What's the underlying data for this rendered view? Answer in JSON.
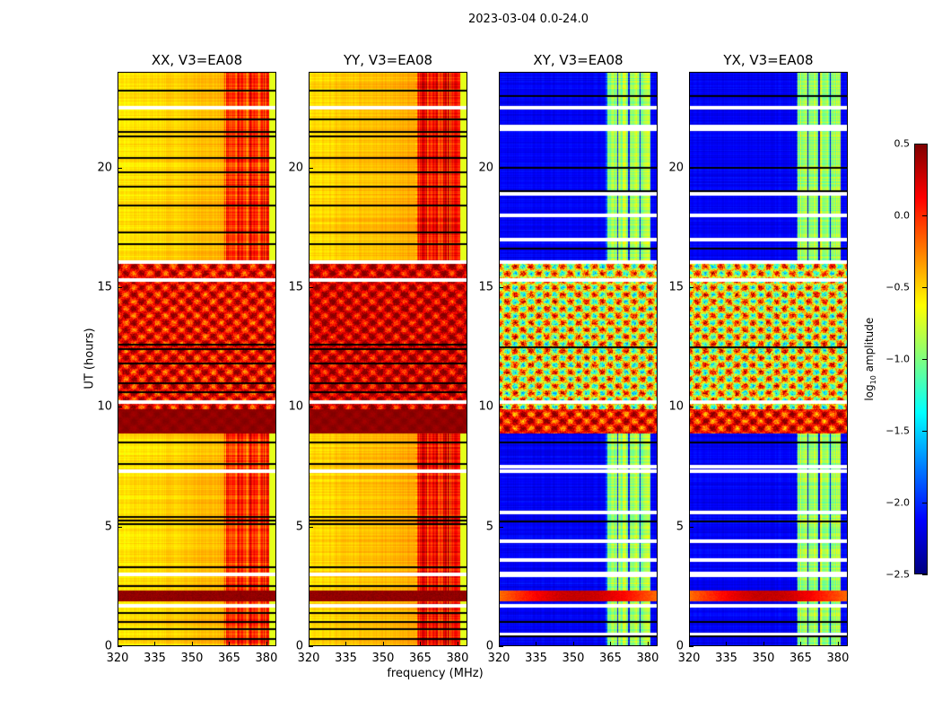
{
  "figure": {
    "suptitle": "2023-03-04 0.0-24.0",
    "ylabel": "UT (hours)",
    "xlabel": "frequency (MHz)"
  },
  "chart_data": {
    "type": "heatmap",
    "xlim": [
      320,
      384
    ],
    "ylim": [
      0,
      24
    ],
    "xticks": [
      "320",
      "335",
      "350",
      "365",
      "380"
    ],
    "xtick_values": [
      320,
      335,
      350,
      365,
      380
    ],
    "yticks": [
      "0",
      "5",
      "10",
      "15",
      "20"
    ],
    "ytick_values": [
      0,
      5,
      10,
      15,
      20
    ],
    "colorbar": {
      "label_prefix": "log",
      "label_sub": "10",
      "label_suffix": " amplitude",
      "range": [
        -2.5,
        0.5
      ],
      "ticks": [
        "0.5",
        "0.0",
        "−0.5",
        "−1.0",
        "−1.5",
        "−2.0",
        "−2.5"
      ],
      "tick_values": [
        0.5,
        0,
        -0.5,
        -1,
        -1.5,
        -2,
        -2.5
      ],
      "colormap": "jet"
    },
    "panels": [
      {
        "title": "XX, V3=EA08",
        "kind": "parallel",
        "base": -0.42,
        "rfi_band": [
          363,
          381
        ],
        "rfi_level": 0.05,
        "active": [
          {
            "t": [
              9.9,
              16
            ],
            "level": 0.15,
            "amp": 0.45
          },
          {
            "t": [
              8.9,
              9.9
            ],
            "level": 0.45,
            "amp": 0.05
          }
        ],
        "strong": [
          {
            "t": [
              1.9,
              2.35
            ],
            "level": 0.45
          }
        ],
        "black_rows": [
          0.3,
          0.7,
          1.0,
          1.4,
          2.5,
          3.3,
          5.1,
          5.25,
          5.4,
          7.6,
          8.5,
          10.6,
          11.0,
          11.8,
          12.4,
          12.6,
          16.8,
          17.3,
          18.4,
          19.2,
          19.8,
          20.4,
          21.3,
          21.5,
          22.0,
          23.2
        ],
        "white_rows": [
          1.7,
          3.0,
          7.3,
          10.2,
          15.3,
          16.05,
          22.5
        ]
      },
      {
        "title": "YY, V3=EA08",
        "kind": "parallel",
        "base": -0.38,
        "rfi_band": [
          363,
          381
        ],
        "rfi_level": 0.1,
        "active": [
          {
            "t": [
              9.9,
              16
            ],
            "level": 0.25,
            "amp": 0.4
          },
          {
            "t": [
              8.9,
              9.9
            ],
            "level": 0.45,
            "amp": 0.05
          }
        ],
        "strong": [
          {
            "t": [
              1.9,
              2.35
            ],
            "level": 0.45
          }
        ],
        "black_rows": [
          0.3,
          0.7,
          1.0,
          1.4,
          2.5,
          3.3,
          5.1,
          5.25,
          5.4,
          7.6,
          8.5,
          10.6,
          11.0,
          11.8,
          12.4,
          12.6,
          16.8,
          17.3,
          18.4,
          19.2,
          19.8,
          20.4,
          21.3,
          21.5,
          22.0,
          23.2
        ],
        "white_rows": [
          1.7,
          3.0,
          7.3,
          10.2,
          15.3,
          16.05,
          22.5
        ]
      },
      {
        "title": "XY, V3=EA08",
        "kind": "cross",
        "base": -2.15,
        "rfi_band": [
          363,
          381
        ],
        "rfi_level": -0.9,
        "active": [
          {
            "t": [
              9.9,
              16
            ],
            "level": -0.6,
            "amp": 0.9
          },
          {
            "t": [
              8.9,
              9.9
            ],
            "level": 0.1,
            "amp": 0.5
          }
        ],
        "strong": [
          {
            "t": [
              1.9,
              2.35
            ],
            "level": -0.2
          }
        ],
        "black_rows": [
          0.4,
          1.0,
          5.2,
          8.5,
          12.5,
          16.6,
          19.0,
          20.0,
          23.0
        ],
        "white_rows": [
          0.5,
          1.7,
          2.95,
          3.05,
          3.6,
          4.4,
          5.6,
          7.3,
          7.5,
          10.2,
          15.3,
          16.05,
          17.0,
          18.0,
          18.9,
          21.6,
          21.7,
          22.5
        ]
      },
      {
        "title": "YX, V3=EA08",
        "kind": "cross",
        "base": -2.15,
        "rfi_band": [
          363,
          381
        ],
        "rfi_level": -0.9,
        "active": [
          {
            "t": [
              9.9,
              16
            ],
            "level": -0.6,
            "amp": 0.9
          },
          {
            "t": [
              8.9,
              9.9
            ],
            "level": 0.1,
            "amp": 0.5
          }
        ],
        "strong": [
          {
            "t": [
              1.9,
              2.35
            ],
            "level": -0.2
          }
        ],
        "black_rows": [
          0.4,
          1.0,
          5.2,
          8.5,
          12.5,
          16.6,
          19.0,
          20.0,
          23.0
        ],
        "white_rows": [
          0.5,
          1.7,
          2.95,
          3.05,
          3.6,
          4.4,
          5.6,
          7.3,
          7.5,
          10.2,
          15.3,
          16.05,
          17.0,
          18.0,
          18.9,
          21.6,
          21.7,
          22.5
        ]
      }
    ]
  }
}
